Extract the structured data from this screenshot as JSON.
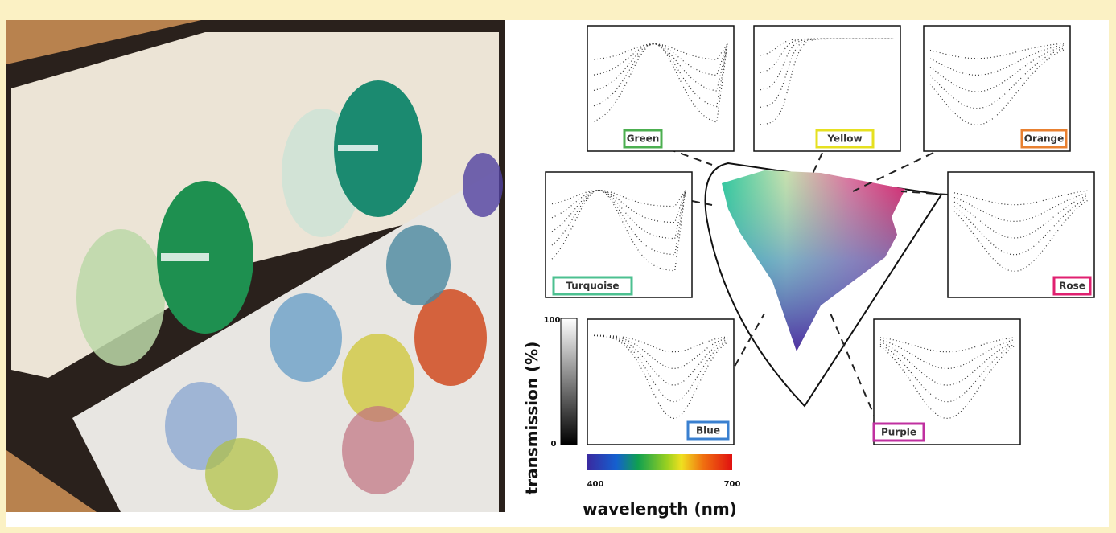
{
  "panels": [
    {
      "label": "Green"
    },
    {
      "label": "Yellow"
    },
    {
      "label": "Orange"
    },
    {
      "label": "Turquoise"
    },
    {
      "label": "Rose"
    },
    {
      "label": "Blue"
    },
    {
      "label": "Purple"
    }
  ],
  "y_axis": {
    "label": "transmission (%)",
    "top": "100",
    "bottom": "0"
  },
  "x_axis": {
    "label": "wavelength (nm)",
    "left": "400",
    "right": "700"
  }
}
